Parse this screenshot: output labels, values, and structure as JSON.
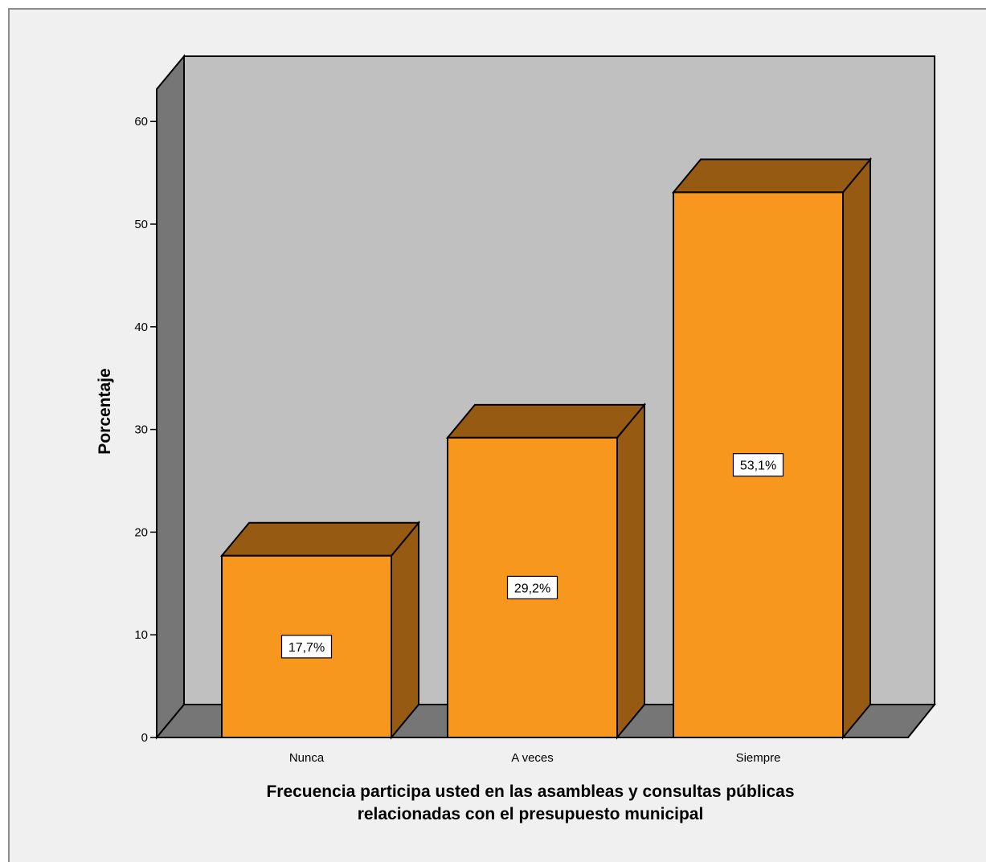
{
  "chart_data": {
    "type": "bar",
    "categories": [
      "Nunca",
      "A veces",
      "Siempre"
    ],
    "values": [
      17.7,
      29.2,
      53.1
    ],
    "value_labels": [
      "17,7%",
      "29,2%",
      "53,1%"
    ],
    "xlabel_lines": [
      "Frecuencia participa usted en las asambleas y consultas públicas",
      "relacionadas con el presupuesto municipal"
    ],
    "ylabel": "Porcentaje",
    "yticks": [
      0,
      10,
      20,
      30,
      40,
      50,
      60
    ],
    "ylim": [
      0,
      66
    ],
    "grid": false,
    "style": "3d",
    "colors": {
      "bar_front": "#f7971e",
      "bar_top": "#975a12",
      "bar_side": "#975a12",
      "back_wall": "#c0c0c0",
      "side_wall": "#767676",
      "floor": "#767676",
      "background": "#f0f0f0"
    }
  }
}
